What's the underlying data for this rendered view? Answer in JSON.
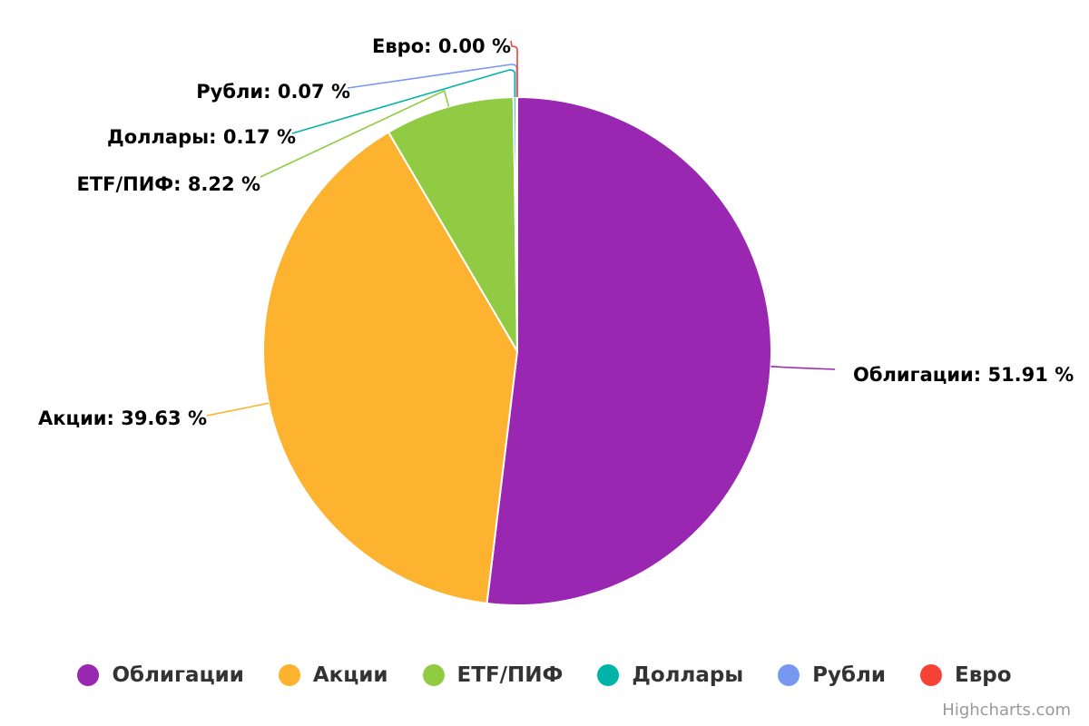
{
  "chart_data": {
    "type": "pie",
    "label_suffix": " %",
    "slices": [
      {
        "name": "Облигации",
        "value": 51.91,
        "label": "Облигации: 51.91 %",
        "color": "#9a27b1"
      },
      {
        "name": "Акции",
        "value": 39.63,
        "label": "Акции: 39.63 %",
        "color": "#fdb32f"
      },
      {
        "name": "ETF/ПИФ",
        "value": 8.22,
        "label": "ETF/ПИФ: 8.22 %",
        "color": "#91cb43"
      },
      {
        "name": "Доллары",
        "value": 0.17,
        "label": "Доллары: 0.17 %",
        "color": "#00b4a7"
      },
      {
        "name": "Рубли",
        "value": 0.07,
        "label": "Рубли: 0.07 %",
        "color": "#7798f2"
      },
      {
        "name": "Евро",
        "value": 0.0,
        "label": "Евро: 0.00 %",
        "color": "#f44336"
      }
    ],
    "legend_position": "bottom-center"
  },
  "legend": {
    "items": [
      {
        "label": "Облигации",
        "color": "#9a27b1"
      },
      {
        "label": "Акции",
        "color": "#fdb32f"
      },
      {
        "label": "ETF/ПИФ",
        "color": "#91cb43"
      },
      {
        "label": "Доллары",
        "color": "#00b4a7"
      },
      {
        "label": "Рубли",
        "color": "#7798f2"
      },
      {
        "label": "Евро",
        "color": "#f44336"
      }
    ]
  },
  "credits": {
    "text": "Highcharts.com"
  }
}
